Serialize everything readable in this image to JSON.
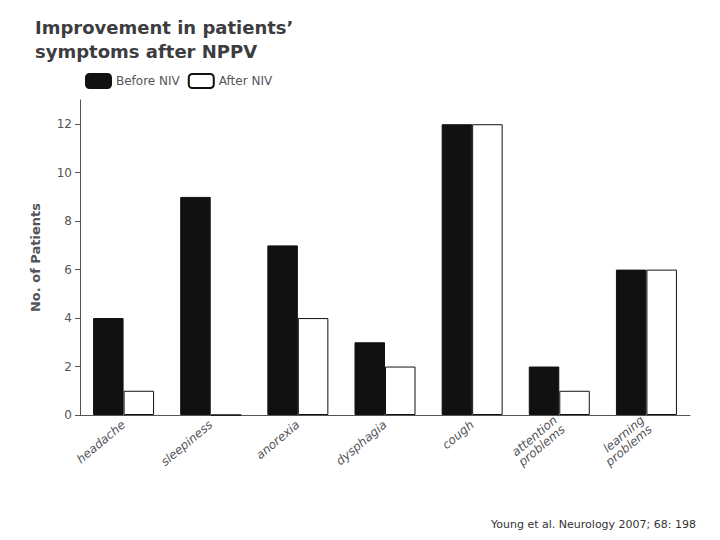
{
  "chart_data": {
    "type": "bar",
    "title": "Improvement in patients’\nsymptoms after NPPV",
    "categories": [
      "headache",
      "sleepiness",
      "anorexia",
      "dysphagia",
      "cough",
      "attention\nproblems",
      "learning\nproblems"
    ],
    "series": [
      {
        "name": "Before NIV",
        "color": "#111111",
        "values": [
          4,
          9,
          7,
          3,
          12,
          2,
          6
        ]
      },
      {
        "name": "After NIV",
        "color": "#ffffff",
        "values": [
          1,
          0,
          4,
          2,
          12,
          1,
          6
        ]
      }
    ],
    "ylabel": "No. of Patients",
    "ylim": [
      0,
      13
    ],
    "yticks": [
      0,
      2,
      4,
      6,
      8,
      10,
      12
    ],
    "grid": false,
    "legend": "upper left",
    "annotations": [
      "Young et al. Neurology 2007; 68: 198"
    ]
  }
}
